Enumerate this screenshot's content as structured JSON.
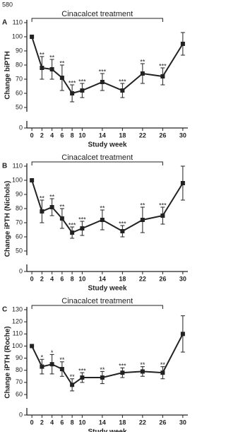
{
  "page_number": "580",
  "chart_data": [
    {
      "type": "line",
      "panel_label": "A",
      "annotation": "Cinacalcet treatment",
      "treatment_weeks": [
        0,
        26
      ],
      "x_label": "Study week",
      "y_label": "Change biPTH",
      "x": [
        0,
        2,
        4,
        6,
        8,
        10,
        14,
        18,
        22,
        26,
        30
      ],
      "xlim": [
        -1,
        31
      ],
      "xticks": [
        0,
        2,
        4,
        6,
        8,
        10,
        14,
        18,
        22,
        26,
        30
      ],
      "ylim": [
        0,
        110
      ],
      "axis_break": [
        0,
        50
      ],
      "yticks": [
        0,
        50,
        60,
        70,
        80,
        90,
        100,
        110
      ],
      "series": [
        {
          "color": "#222222",
          "values": [
            100,
            78,
            77,
            71,
            60,
            62,
            68,
            62,
            74,
            72,
            95
          ],
          "errors": [
            0,
            8,
            7,
            9,
            6,
            5,
            6,
            5,
            7,
            6,
            8
          ],
          "significance": [
            null,
            "**",
            "**",
            "**",
            "***",
            "***",
            "***",
            "***",
            "**",
            "***",
            null
          ]
        }
      ]
    },
    {
      "type": "line",
      "panel_label": "B",
      "annotation": "Cinacalcet treatment",
      "treatment_weeks": [
        0,
        26
      ],
      "x_label": "Study week",
      "y_label": "Change iPTH (Nichols)",
      "x": [
        0,
        2,
        4,
        6,
        8,
        10,
        14,
        18,
        22,
        26,
        30
      ],
      "xlim": [
        -1,
        31
      ],
      "xticks": [
        0,
        2,
        4,
        6,
        8,
        10,
        14,
        18,
        22,
        26,
        30
      ],
      "ylim": [
        0,
        110
      ],
      "axis_break": [
        0,
        50
      ],
      "yticks": [
        0,
        50,
        60,
        70,
        80,
        90,
        100,
        110
      ],
      "series": [
        {
          "color": "#222222",
          "values": [
            100,
            78,
            81,
            73,
            63,
            66,
            72,
            64,
            72,
            75,
            98
          ],
          "errors": [
            0,
            8,
            6,
            7,
            4,
            5,
            7,
            4,
            9,
            6,
            12
          ],
          "significance": [
            null,
            "**",
            "**",
            "**",
            "***",
            "***",
            "**",
            "***",
            "**",
            "***",
            null
          ]
        }
      ]
    },
    {
      "type": "line",
      "panel_label": "C",
      "annotation": "Cinacalcet treatment",
      "treatment_weeks": [
        0,
        26
      ],
      "x_label": "Study week",
      "y_label": "Change iPTH (Roche)",
      "x": [
        0,
        2,
        4,
        6,
        8,
        10,
        14,
        18,
        22,
        26,
        30
      ],
      "xlim": [
        -1,
        31
      ],
      "xticks": [
        0,
        2,
        4,
        6,
        8,
        10,
        14,
        18,
        22,
        26,
        30
      ],
      "ylim": [
        0,
        130
      ],
      "axis_break": [
        0,
        60
      ],
      "yticks": [
        0,
        60,
        70,
        80,
        90,
        100,
        110,
        120,
        130
      ],
      "series": [
        {
          "color": "#222222",
          "values": [
            100,
            83,
            85,
            81,
            68,
            74,
            74,
            78,
            79,
            78,
            110
          ],
          "errors": [
            0,
            6,
            8,
            6,
            5,
            4,
            5,
            4,
            4,
            5,
            15
          ],
          "significance": [
            null,
            "*",
            "*",
            "**",
            "**",
            "***",
            "**",
            "***",
            "**",
            "**",
            null
          ]
        }
      ]
    }
  ]
}
